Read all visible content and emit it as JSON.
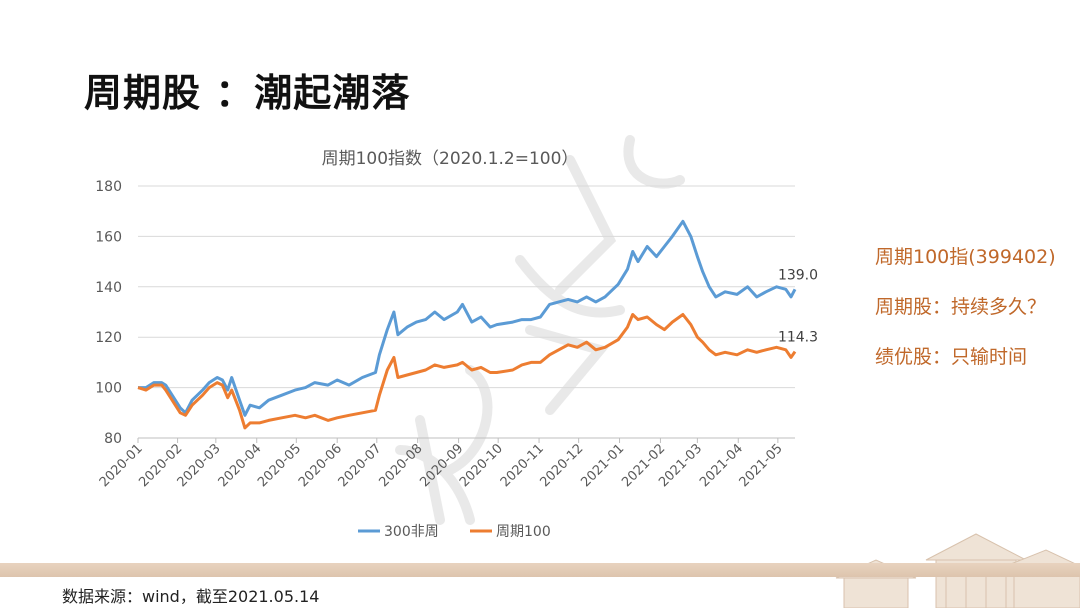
{
  "slide": {
    "title": "周期股 ：潮起潮落",
    "source": "数据来源：wind，截至2021.05.14"
  },
  "side_notes": [
    "周期100指(399402)",
    "周期股：持续多久？",
    "绩优股：只输时间"
  ],
  "colors": {
    "series_300": "#5b9bd5",
    "series_cyc": "#ed7d31",
    "accent_text": "#c0682a",
    "grid": "#d9d9d9",
    "axis_text": "#595959"
  },
  "chart_data": {
    "type": "line",
    "title": "周期100指数（2020.1.2=100）",
    "ylim": [
      80,
      180
    ],
    "yticks": [
      80,
      100,
      120,
      140,
      160,
      180
    ],
    "xlim": [
      "2020-01-02",
      "2021-05-14"
    ],
    "xticks": [
      "2020-01",
      "2020-02",
      "2020-03",
      "2020-04",
      "2020-05",
      "2020-06",
      "2020-07",
      "2020-08",
      "2020-09",
      "2020-10",
      "2020-11",
      "2020-12",
      "2021-01",
      "2021-02",
      "2021-03",
      "2021-04",
      "2021-05"
    ],
    "grid": true,
    "legend": "bottom",
    "series": [
      {
        "name": "300非周",
        "end_label": "139.0",
        "points": [
          [
            "2020-01-02",
            100
          ],
          [
            "2020-01-08",
            100
          ],
          [
            "2020-01-14",
            102
          ],
          [
            "2020-01-20",
            102
          ],
          [
            "2020-01-23",
            101
          ],
          [
            "2020-02-03",
            92
          ],
          [
            "2020-02-07",
            90
          ],
          [
            "2020-02-12",
            95
          ],
          [
            "2020-02-20",
            99
          ],
          [
            "2020-02-25",
            102
          ],
          [
            "2020-03-02",
            104
          ],
          [
            "2020-03-06",
            103
          ],
          [
            "2020-03-10",
            99
          ],
          [
            "2020-03-13",
            104
          ],
          [
            "2020-03-19",
            95
          ],
          [
            "2020-03-23",
            89
          ],
          [
            "2020-03-27",
            93
          ],
          [
            "2020-04-03",
            92
          ],
          [
            "2020-04-10",
            95
          ],
          [
            "2020-04-20",
            97
          ],
          [
            "2020-04-30",
            99
          ],
          [
            "2020-05-08",
            100
          ],
          [
            "2020-05-15",
            102
          ],
          [
            "2020-05-25",
            101
          ],
          [
            "2020-06-01",
            103
          ],
          [
            "2020-06-10",
            101
          ],
          [
            "2020-06-20",
            104
          ],
          [
            "2020-06-30",
            106
          ],
          [
            "2020-07-03",
            113
          ],
          [
            "2020-07-09",
            123
          ],
          [
            "2020-07-14",
            130
          ],
          [
            "2020-07-17",
            121
          ],
          [
            "2020-07-24",
            124
          ],
          [
            "2020-07-31",
            126
          ],
          [
            "2020-08-07",
            127
          ],
          [
            "2020-08-14",
            130
          ],
          [
            "2020-08-21",
            127
          ],
          [
            "2020-08-31",
            130
          ],
          [
            "2020-09-04",
            133
          ],
          [
            "2020-09-11",
            126
          ],
          [
            "2020-09-18",
            128
          ],
          [
            "2020-09-25",
            124
          ],
          [
            "2020-09-30",
            125
          ],
          [
            "2020-10-12",
            126
          ],
          [
            "2020-10-19",
            127
          ],
          [
            "2020-10-26",
            127
          ],
          [
            "2020-11-02",
            128
          ],
          [
            "2020-11-09",
            133
          ],
          [
            "2020-11-16",
            134
          ],
          [
            "2020-11-23",
            135
          ],
          [
            "2020-11-30",
            134
          ],
          [
            "2020-12-07",
            136
          ],
          [
            "2020-12-14",
            134
          ],
          [
            "2020-12-21",
            136
          ],
          [
            "2020-12-31",
            141
          ],
          [
            "2021-01-07",
            147
          ],
          [
            "2021-01-11",
            154
          ],
          [
            "2021-01-15",
            150
          ],
          [
            "2021-01-22",
            156
          ],
          [
            "2021-01-29",
            152
          ],
          [
            "2021-02-04",
            156
          ],
          [
            "2021-02-10",
            160
          ],
          [
            "2021-02-18",
            166
          ],
          [
            "2021-02-24",
            160
          ],
          [
            "2021-03-01",
            152
          ],
          [
            "2021-03-05",
            146
          ],
          [
            "2021-03-10",
            140
          ],
          [
            "2021-03-15",
            136
          ],
          [
            "2021-03-22",
            138
          ],
          [
            "2021-03-31",
            137
          ],
          [
            "2021-04-08",
            140
          ],
          [
            "2021-04-15",
            136
          ],
          [
            "2021-04-22",
            138
          ],
          [
            "2021-04-30",
            140
          ],
          [
            "2021-05-07",
            139
          ],
          [
            "2021-05-11",
            136
          ],
          [
            "2021-05-14",
            139
          ]
        ]
      },
      {
        "name": "周期100",
        "end_label": "114.3",
        "points": [
          [
            "2020-01-02",
            100
          ],
          [
            "2020-01-08",
            99
          ],
          [
            "2020-01-14",
            101
          ],
          [
            "2020-01-20",
            101
          ],
          [
            "2020-01-23",
            99
          ],
          [
            "2020-02-03",
            90
          ],
          [
            "2020-02-07",
            89
          ],
          [
            "2020-02-12",
            93
          ],
          [
            "2020-02-20",
            97
          ],
          [
            "2020-02-25",
            100
          ],
          [
            "2020-03-02",
            102
          ],
          [
            "2020-03-06",
            101
          ],
          [
            "2020-03-10",
            96
          ],
          [
            "2020-03-13",
            99
          ],
          [
            "2020-03-19",
            91
          ],
          [
            "2020-03-23",
            84
          ],
          [
            "2020-03-27",
            86
          ],
          [
            "2020-04-03",
            86
          ],
          [
            "2020-04-10",
            87
          ],
          [
            "2020-04-20",
            88
          ],
          [
            "2020-04-30",
            89
          ],
          [
            "2020-05-08",
            88
          ],
          [
            "2020-05-15",
            89
          ],
          [
            "2020-05-25",
            87
          ],
          [
            "2020-06-01",
            88
          ],
          [
            "2020-06-10",
            89
          ],
          [
            "2020-06-20",
            90
          ],
          [
            "2020-06-30",
            91
          ],
          [
            "2020-07-03",
            97
          ],
          [
            "2020-07-09",
            107
          ],
          [
            "2020-07-14",
            112
          ],
          [
            "2020-07-17",
            104
          ],
          [
            "2020-07-24",
            105
          ],
          [
            "2020-07-31",
            106
          ],
          [
            "2020-08-07",
            107
          ],
          [
            "2020-08-14",
            109
          ],
          [
            "2020-08-21",
            108
          ],
          [
            "2020-08-31",
            109
          ],
          [
            "2020-09-04",
            110
          ],
          [
            "2020-09-11",
            107
          ],
          [
            "2020-09-18",
            108
          ],
          [
            "2020-09-25",
            106
          ],
          [
            "2020-09-30",
            106
          ],
          [
            "2020-10-12",
            107
          ],
          [
            "2020-10-19",
            109
          ],
          [
            "2020-10-26",
            110
          ],
          [
            "2020-11-02",
            110
          ],
          [
            "2020-11-09",
            113
          ],
          [
            "2020-11-16",
            115
          ],
          [
            "2020-11-23",
            117
          ],
          [
            "2020-11-30",
            116
          ],
          [
            "2020-12-07",
            118
          ],
          [
            "2020-12-14",
            115
          ],
          [
            "2020-12-21",
            116
          ],
          [
            "2020-12-31",
            119
          ],
          [
            "2021-01-07",
            124
          ],
          [
            "2021-01-11",
            129
          ],
          [
            "2021-01-15",
            127
          ],
          [
            "2021-01-22",
            128
          ],
          [
            "2021-01-29",
            125
          ],
          [
            "2021-02-04",
            123
          ],
          [
            "2021-02-10",
            126
          ],
          [
            "2021-02-18",
            129
          ],
          [
            "2021-02-24",
            125
          ],
          [
            "2021-03-01",
            120
          ],
          [
            "2021-03-05",
            118
          ],
          [
            "2021-03-10",
            115
          ],
          [
            "2021-03-15",
            113
          ],
          [
            "2021-03-22",
            114
          ],
          [
            "2021-03-31",
            113
          ],
          [
            "2021-04-08",
            115
          ],
          [
            "2021-04-15",
            114
          ],
          [
            "2021-04-22",
            115
          ],
          [
            "2021-04-30",
            116
          ],
          [
            "2021-05-07",
            115
          ],
          [
            "2021-05-11",
            112
          ],
          [
            "2021-05-14",
            114.3
          ]
        ]
      }
    ]
  }
}
